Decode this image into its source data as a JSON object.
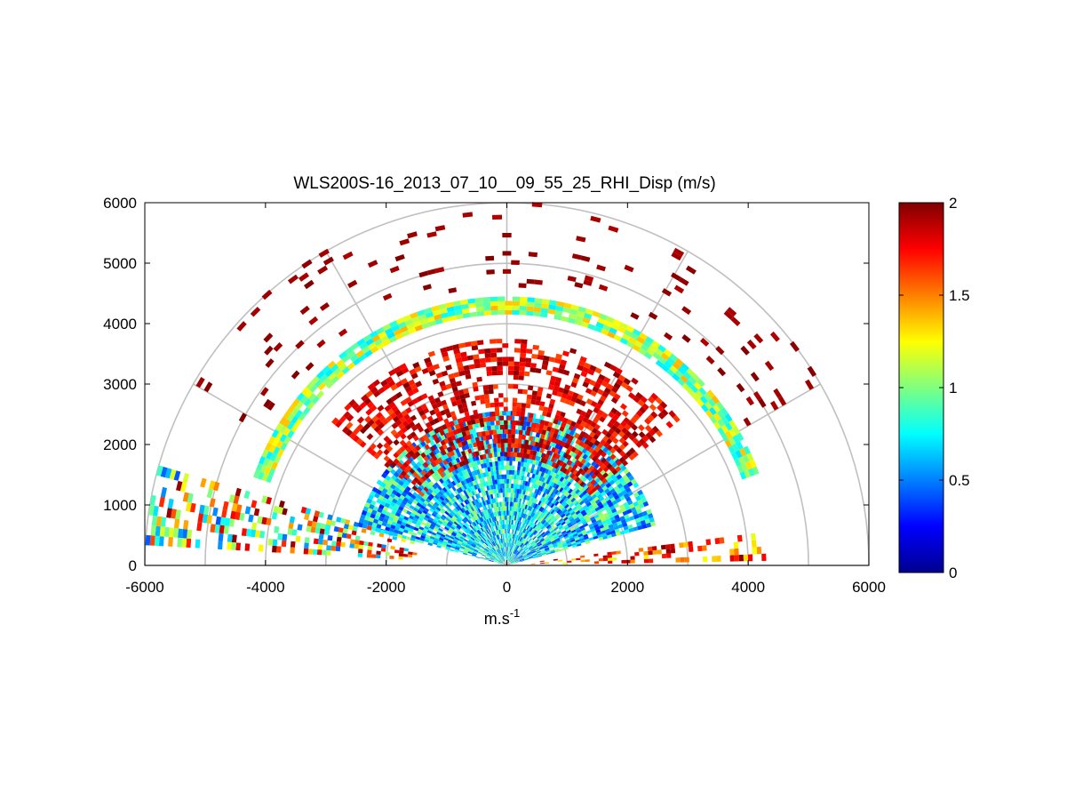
{
  "chart_data": {
    "type": "heatmap",
    "title": "WLS200S-16_2013_07_10__09_55_25_RHI_Disp (m/s)",
    "xlabel_base": "m.s",
    "xlabel_exp": "-1",
    "xlim": [
      -6000,
      6000
    ],
    "ylim": [
      0,
      6000
    ],
    "x_ticks": [
      "-6000",
      "-4000",
      "-2000",
      "0",
      "2000",
      "4000",
      "6000"
    ],
    "y_ticks": [
      "0",
      "1000",
      "2000",
      "3000",
      "4000",
      "5000",
      "6000"
    ],
    "polar_grid": {
      "range_rings": [
        1000,
        2000,
        3000,
        4000,
        5000,
        6000
      ],
      "spokes_deg": [
        0,
        30,
        60,
        90,
        120,
        150,
        180
      ]
    },
    "colorbar": {
      "colormap": "jet",
      "range": [
        0,
        2
      ],
      "ticks": [
        "0",
        "0.5",
        "1",
        "1.5",
        "2"
      ]
    },
    "layers": [
      {
        "name": "low-level cone",
        "r_range": [
          80,
          2500
        ],
        "az_range_deg": [
          15,
          165
        ],
        "value_range": [
          0.3,
          1.1
        ],
        "density": 0.9
      },
      {
        "name": "mid band",
        "r_range": [
          1800,
          3700
        ],
        "az_range_deg": [
          40,
          140
        ],
        "value_range": [
          1.6,
          2.0
        ],
        "density": 0.55
      },
      {
        "name": "cloud layer",
        "r_range": [
          4150,
          4450
        ],
        "az_range_deg": [
          20,
          160
        ],
        "value_range": [
          0.7,
          1.4
        ],
        "density": 0.95
      },
      {
        "name": "west low-angle beams",
        "r_range": [
          1500,
          6000
        ],
        "az_range_deg": [
          164,
          176
        ],
        "value_range": [
          0.4,
          2.0
        ],
        "density": 0.5
      },
      {
        "name": "east low-angle beams",
        "r_range": [
          400,
          4300
        ],
        "az_range_deg": [
          1,
          6
        ],
        "value_range": [
          1.2,
          2.0
        ],
        "density": 0.35
      },
      {
        "name": "sparse upper",
        "r_range": [
          4600,
          6000
        ],
        "az_range_deg": [
          30,
          150
        ],
        "value_range": [
          1.9,
          2.0
        ],
        "density": 0.06
      }
    ]
  }
}
